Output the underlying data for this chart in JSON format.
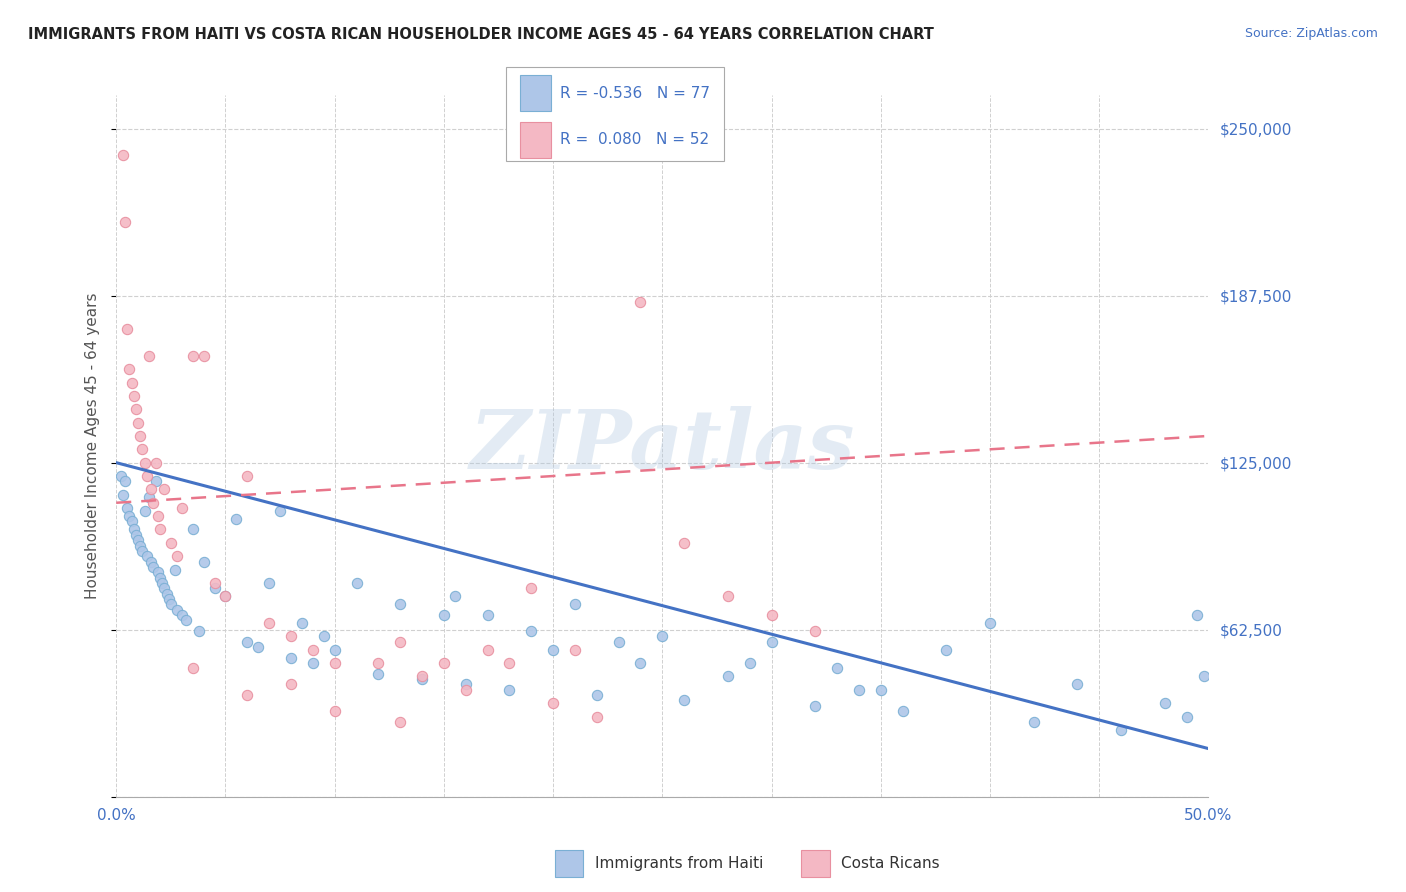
{
  "title": "IMMIGRANTS FROM HAITI VS COSTA RICAN HOUSEHOLDER INCOME AGES 45 - 64 YEARS CORRELATION CHART",
  "source": "Source: ZipAtlas.com",
  "ylabel": "Householder Income Ages 45 - 64 years",
  "xlim": [
    0.0,
    0.5
  ],
  "ylim": [
    0,
    262500
  ],
  "yticks": [
    0,
    62500,
    125000,
    187500,
    250000
  ],
  "ytick_labels": [
    "",
    "$62,500",
    "$125,000",
    "$187,500",
    "$250,000"
  ],
  "xticks": [
    0.0,
    0.05,
    0.1,
    0.15,
    0.2,
    0.25,
    0.3,
    0.35,
    0.4,
    0.45,
    0.5
  ],
  "watermark": "ZIPatlas",
  "haiti_color": "#aec6e8",
  "haiti_edge_color": "#7aafd4",
  "cr_color": "#f4b8c4",
  "cr_edge_color": "#e890a0",
  "haiti_line_color": "#4472c4",
  "cr_line_color": "#e8758a",
  "title_color": "#222222",
  "axis_label_color": "#4472c4",
  "grid_color": "#d0d0d0",
  "haiti_line_x0": 0.0,
  "haiti_line_y0": 125000,
  "haiti_line_x1": 0.5,
  "haiti_line_y1": 18000,
  "cr_line_x0": 0.0,
  "cr_line_y0": 110000,
  "cr_line_x1": 0.5,
  "cr_line_y1": 135000,
  "haiti_scatter_x": [
    0.002,
    0.003,
    0.004,
    0.005,
    0.006,
    0.007,
    0.008,
    0.009,
    0.01,
    0.011,
    0.012,
    0.013,
    0.014,
    0.015,
    0.016,
    0.017,
    0.018,
    0.019,
    0.02,
    0.021,
    0.022,
    0.023,
    0.024,
    0.025,
    0.027,
    0.028,
    0.03,
    0.032,
    0.035,
    0.038,
    0.04,
    0.045,
    0.05,
    0.055,
    0.06,
    0.065,
    0.07,
    0.075,
    0.08,
    0.085,
    0.09,
    0.095,
    0.1,
    0.11,
    0.12,
    0.13,
    0.14,
    0.15,
    0.16,
    0.17,
    0.18,
    0.2,
    0.21,
    0.22,
    0.24,
    0.26,
    0.28,
    0.3,
    0.32,
    0.34,
    0.36,
    0.38,
    0.4,
    0.42,
    0.44,
    0.46,
    0.48,
    0.49,
    0.495,
    0.498,
    0.35,
    0.33,
    0.29,
    0.25,
    0.23,
    0.19,
    0.155
  ],
  "haiti_scatter_y": [
    120000,
    113000,
    118000,
    108000,
    105000,
    103000,
    100000,
    98000,
    96000,
    94000,
    92000,
    107000,
    90000,
    112000,
    88000,
    86000,
    118000,
    84000,
    82000,
    80000,
    78000,
    76000,
    74000,
    72000,
    85000,
    70000,
    68000,
    66000,
    100000,
    62000,
    88000,
    78000,
    75000,
    104000,
    58000,
    56000,
    80000,
    107000,
    52000,
    65000,
    50000,
    60000,
    55000,
    80000,
    46000,
    72000,
    44000,
    68000,
    42000,
    68000,
    40000,
    55000,
    72000,
    38000,
    50000,
    36000,
    45000,
    58000,
    34000,
    40000,
    32000,
    55000,
    65000,
    28000,
    42000,
    25000,
    35000,
    30000,
    68000,
    45000,
    40000,
    48000,
    50000,
    60000,
    58000,
    62000,
    75000
  ],
  "cr_scatter_x": [
    0.003,
    0.004,
    0.005,
    0.006,
    0.007,
    0.008,
    0.009,
    0.01,
    0.011,
    0.012,
    0.013,
    0.014,
    0.015,
    0.016,
    0.017,
    0.018,
    0.019,
    0.02,
    0.022,
    0.025,
    0.028,
    0.03,
    0.035,
    0.04,
    0.045,
    0.05,
    0.06,
    0.07,
    0.08,
    0.09,
    0.1,
    0.12,
    0.13,
    0.14,
    0.16,
    0.18,
    0.2,
    0.21,
    0.22,
    0.24,
    0.26,
    0.28,
    0.3,
    0.32,
    0.035,
    0.06,
    0.08,
    0.1,
    0.13,
    0.15,
    0.17,
    0.19
  ],
  "cr_scatter_y": [
    240000,
    215000,
    175000,
    160000,
    155000,
    150000,
    145000,
    140000,
    135000,
    130000,
    125000,
    120000,
    165000,
    115000,
    110000,
    125000,
    105000,
    100000,
    115000,
    95000,
    90000,
    108000,
    165000,
    165000,
    80000,
    75000,
    120000,
    65000,
    60000,
    55000,
    50000,
    50000,
    58000,
    45000,
    40000,
    50000,
    35000,
    55000,
    30000,
    185000,
    95000,
    75000,
    68000,
    62000,
    48000,
    38000,
    42000,
    32000,
    28000,
    50000,
    55000,
    78000
  ]
}
